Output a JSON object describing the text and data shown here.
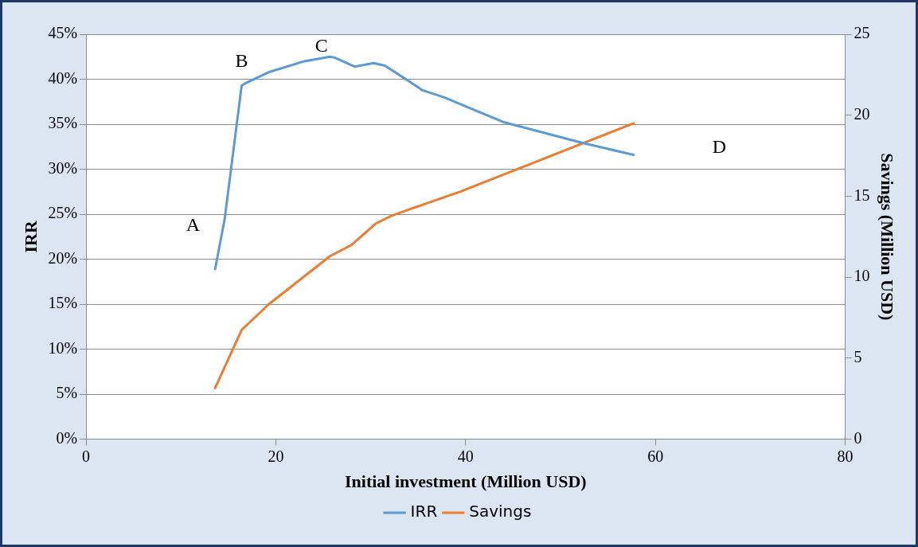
{
  "chart_data": {
    "type": "line",
    "xlabel": "Initial investment (Million USD)",
    "ylabel": "IRR",
    "y2label": "Savings (Million USD)",
    "xlim": [
      0,
      80
    ],
    "xticks": [
      0,
      20,
      40,
      60,
      80
    ],
    "ylim": [
      0,
      45
    ],
    "yticks": [
      {
        "value": 0,
        "label": "0%"
      },
      {
        "value": 5,
        "label": "5%"
      },
      {
        "value": 10,
        "label": "10%"
      },
      {
        "value": 15,
        "label": "15%"
      },
      {
        "value": 20,
        "label": "20%"
      },
      {
        "value": 25,
        "label": "25%"
      },
      {
        "value": 30,
        "label": "30%"
      },
      {
        "value": 35,
        "label": "35%"
      },
      {
        "value": 40,
        "label": "40%"
      },
      {
        "value": 45,
        "label": "45%"
      }
    ],
    "y2lim": [
      0,
      25
    ],
    "y2ticks": [
      0,
      5,
      10,
      15,
      20,
      25
    ],
    "grid": "y",
    "legend": "bottom",
    "marker": "none",
    "line_style": "solid",
    "series": [
      {
        "name": "IRR",
        "color": "#5b9bd5",
        "x": [
          13.6,
          14.6,
          16.4,
          16.7,
          19.3,
          23.0,
          25.7,
          26.2,
          28.3,
          30.3,
          31.5,
          34.0,
          35.4,
          37.7,
          44.1,
          52.4,
          57.7
        ],
        "values": [
          18.9,
          24.4,
          39.3,
          39.5,
          40.8,
          42.0,
          42.5,
          42.4,
          41.4,
          41.8,
          41.5,
          39.8,
          38.8,
          38.0,
          35.2,
          32.9,
          31.6
        ]
      },
      {
        "name": "Savings",
        "color": "#ed7d31",
        "axis": "y2",
        "x": [
          13.6,
          16.4,
          19.3,
          25.7,
          28.0,
          30.5,
          32.2,
          39.5,
          57.7
        ],
        "values": [
          3.16,
          6.75,
          8.35,
          11.3,
          12.0,
          13.3,
          13.8,
          15.3,
          19.5
        ]
      }
    ],
    "annotations": [
      "A",
      "B",
      "C",
      "D"
    ]
  }
}
